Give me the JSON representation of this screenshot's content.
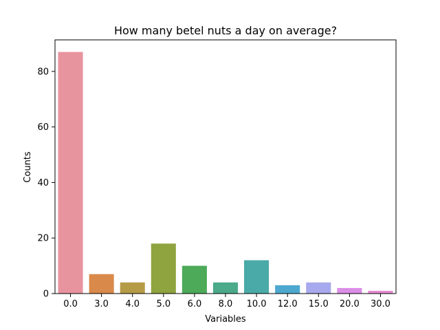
{
  "chart_data": {
    "type": "bar",
    "title": "How many betel nuts a day on average?",
    "xlabel": "Variables",
    "ylabel": "Counts",
    "categories": [
      "0.0",
      "3.0",
      "4.0",
      "5.0",
      "6.0",
      "8.0",
      "10.0",
      "12.0",
      "15.0",
      "20.0",
      "30.0"
    ],
    "values": [
      87,
      7,
      4,
      18,
      10,
      4,
      12,
      3,
      4,
      2,
      1
    ],
    "colors": [
      "#e8949f",
      "#d9894a",
      "#b69b47",
      "#8fa33f",
      "#4caa58",
      "#4aaa8a",
      "#4aaaa7",
      "#4ca8cf",
      "#a8a8ee",
      "#da8ee6",
      "#e68cd2"
    ],
    "ylim": [
      0,
      91.35
    ],
    "yticks": [
      0,
      20,
      40,
      60,
      80
    ],
    "grid": false,
    "legend": "none"
  }
}
